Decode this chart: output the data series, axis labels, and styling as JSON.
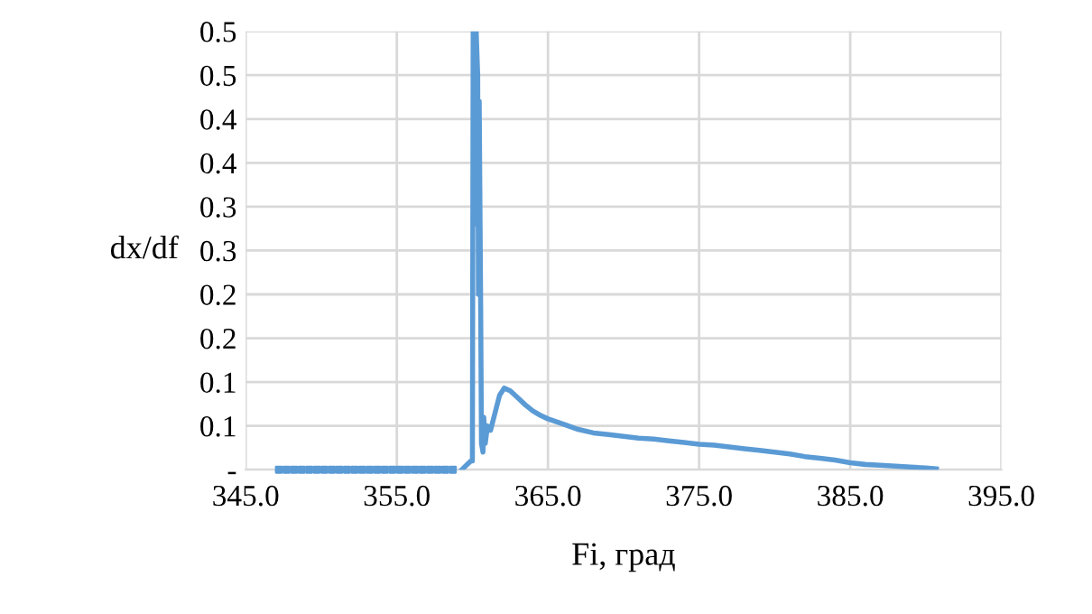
{
  "chart_data": {
    "type": "line",
    "xlabel": "Fi, град",
    "ylabel": "dx/df",
    "xlim": [
      345,
      395
    ],
    "xticks": [
      {
        "value": 345,
        "label": "345.0"
      },
      {
        "value": 355,
        "label": "355.0"
      },
      {
        "value": 365,
        "label": "365.0"
      },
      {
        "value": 375,
        "label": "375.0"
      },
      {
        "value": 385,
        "label": "385.0"
      },
      {
        "value": 395,
        "label": "395.0"
      }
    ],
    "ylim": [
      0,
      0.5
    ],
    "yticks": [
      {
        "value": 0,
        "label": "-"
      },
      {
        "value": 0.05,
        "label": "0.1"
      },
      {
        "value": 0.1,
        "label": "0.1"
      },
      {
        "value": 0.15,
        "label": "0.2"
      },
      {
        "value": 0.2,
        "label": "0.2"
      },
      {
        "value": 0.25,
        "label": "0.3"
      },
      {
        "value": 0.3,
        "label": "0.3"
      },
      {
        "value": 0.35,
        "label": "0.4"
      },
      {
        "value": 0.4,
        "label": "0.4"
      },
      {
        "value": 0.45,
        "label": "0.5"
      },
      {
        "value": 0.5,
        "label": "0.5"
      }
    ],
    "grid": true,
    "legend": false,
    "series": [
      {
        "type": "scatter",
        "marker": "square",
        "color": "#5b9bd5",
        "x": [
          347.2,
          347.7,
          348.2,
          348.7,
          349.2,
          349.7,
          350.2,
          350.7,
          351.2,
          351.7,
          352.2,
          352.7,
          353.2,
          353.7,
          354.2,
          354.7,
          355.2,
          355.7,
          356.2,
          356.7,
          357.2,
          357.7,
          358.2,
          358.7
        ],
        "values": [
          0,
          0,
          0,
          0,
          0,
          0,
          0,
          0,
          0,
          0,
          0,
          0,
          0,
          0,
          0,
          0,
          0,
          0,
          0,
          0,
          0,
          0,
          0,
          0
        ]
      },
      {
        "marker": "none",
        "color": "#5b9bd5",
        "x": [
          359.3,
          359.6,
          359.9,
          360.0,
          360.05,
          360.15,
          360.2,
          360.25,
          360.35,
          360.4,
          360.45,
          360.55,
          360.6,
          360.7,
          360.75,
          360.85,
          361.0,
          361.2,
          361.5,
          361.8,
          362.1,
          362.5,
          363.0,
          363.5,
          364.0,
          364.5,
          365,
          366,
          367,
          368,
          369,
          370,
          371,
          372,
          373,
          374,
          375,
          376,
          377,
          378,
          379,
          380,
          381,
          382,
          383,
          384,
          385,
          386,
          387,
          388,
          389,
          390,
          390.7
        ],
        "values": [
          0,
          0.005,
          0.01,
          0.01,
          0.5,
          0.5,
          0.28,
          0.5,
          0.45,
          0.2,
          0.42,
          0.18,
          0.03,
          0.02,
          0.06,
          0.03,
          0.05,
          0.045,
          0.065,
          0.085,
          0.093,
          0.09,
          0.082,
          0.074,
          0.067,
          0.062,
          0.058,
          0.052,
          0.046,
          0.042,
          0.04,
          0.038,
          0.036,
          0.035,
          0.033,
          0.031,
          0.029,
          0.028,
          0.026,
          0.024,
          0.022,
          0.02,
          0.018,
          0.015,
          0.013,
          0.011,
          0.008,
          0.006,
          0.005,
          0.004,
          0.003,
          0.002,
          0.001
        ]
      }
    ]
  }
}
